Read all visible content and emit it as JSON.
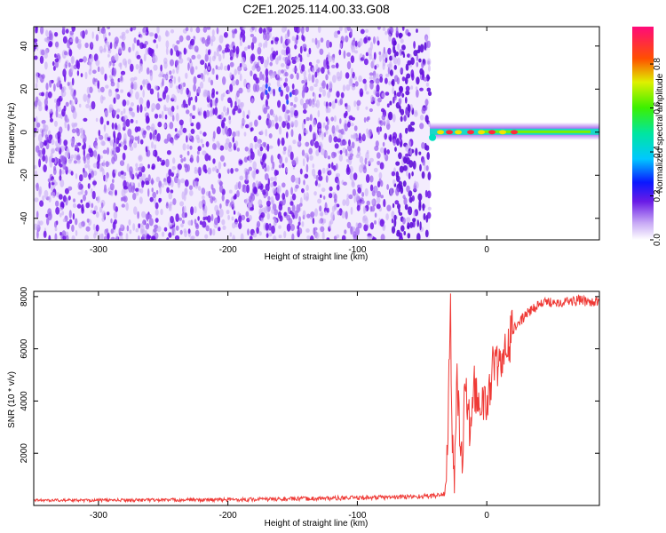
{
  "title": "C2E1.2025.114.00.33.G08",
  "colors": {
    "snr_line": "#ef3a36",
    "spectrogram_background": "#7a1ee8",
    "axis": "#000000"
  },
  "chart_data": [
    {
      "type": "heatmap",
      "title": "C2E1.2025.114.00.33.G08",
      "xlabel": "Height of straight line (km)",
      "ylabel": "Frequency (Hz)",
      "xlim": [
        -350,
        87
      ],
      "ylim": [
        -50,
        49
      ],
      "x_ticks": [
        -300,
        -200,
        -100,
        0
      ],
      "y_ticks": [
        -40,
        -20,
        0,
        20,
        40
      ],
      "grid": false,
      "colorbar": {
        "label": "Normalized spectral amplitude",
        "range": [
          0.0,
          0.97
        ],
        "ticks": [
          0.0,
          0.2,
          0.4,
          0.6,
          0.8
        ],
        "colormap": "rainbow (white-purple-blue-cyan-green-yellow-red-magenta)"
      },
      "features": {
        "noise_region_x": [
          -350,
          -44
        ],
        "signal_line_x": [
          -44,
          87
        ],
        "signal_frequency_hz": 0
      }
    },
    {
      "type": "line",
      "xlabel": "Height of straight line (km)",
      "ylabel": "SNR (10 * v/v)",
      "xlim": [
        -350,
        87
      ],
      "ylim": [
        0,
        8200
      ],
      "x_ticks": [
        -300,
        -200,
        -100,
        0
      ],
      "y_ticks": [
        2000,
        4000,
        6000,
        8000
      ],
      "grid": false,
      "series": [
        {
          "x": [
            -350,
            -300,
            -250,
            -200,
            -150,
            -100,
            -60,
            -40,
            -32,
            -30,
            -28,
            -27,
            -25,
            -23,
            -21,
            -19,
            -17,
            -15,
            -12,
            -10,
            -5,
            0,
            5,
            10,
            15,
            20,
            25,
            30,
            35,
            40,
            45,
            50,
            60,
            70,
            87
          ],
          "y": [
            200,
            200,
            210,
            220,
            250,
            290,
            330,
            370,
            450,
            3000,
            7300,
            3200,
            800,
            5200,
            2800,
            1500,
            4800,
            3700,
            2500,
            4500,
            4000,
            3700,
            5500,
            5200,
            5900,
            6700,
            7000,
            7300,
            7500,
            7700,
            7750,
            7800,
            7800,
            7850,
            7800
          ]
        }
      ]
    }
  ]
}
